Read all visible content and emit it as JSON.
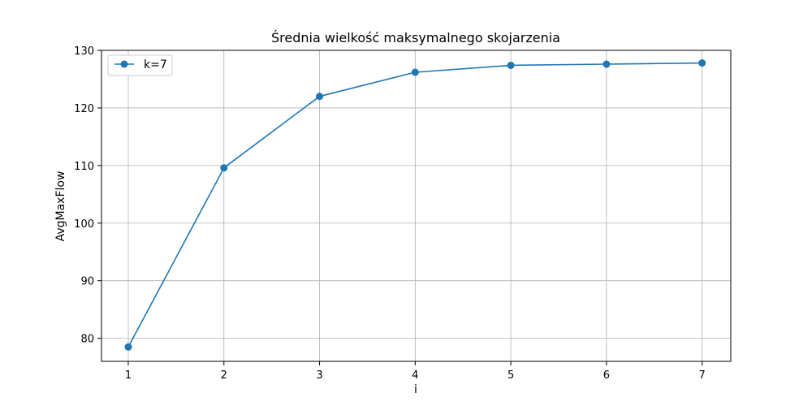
{
  "chart_data": {
    "type": "line",
    "title": "Średnia wielkość maksymalnego skojarzenia",
    "xlabel": "i",
    "ylabel": "AvgMaxFlow",
    "x": [
      1,
      2,
      3,
      4,
      5,
      6,
      7
    ],
    "xlim": [
      0.72,
      7.3
    ],
    "ylim": [
      76.0,
      130.0
    ],
    "xticks": [
      1,
      2,
      3,
      4,
      5,
      6,
      7
    ],
    "yticks": [
      80,
      90,
      100,
      110,
      120,
      130
    ],
    "grid": true,
    "legend_position": "top-left",
    "series": [
      {
        "name": "k=7",
        "color": "#1f77b4",
        "marker": "circle",
        "values": [
          78.5,
          109.6,
          122.0,
          126.2,
          127.4,
          127.6,
          127.8
        ]
      }
    ]
  }
}
